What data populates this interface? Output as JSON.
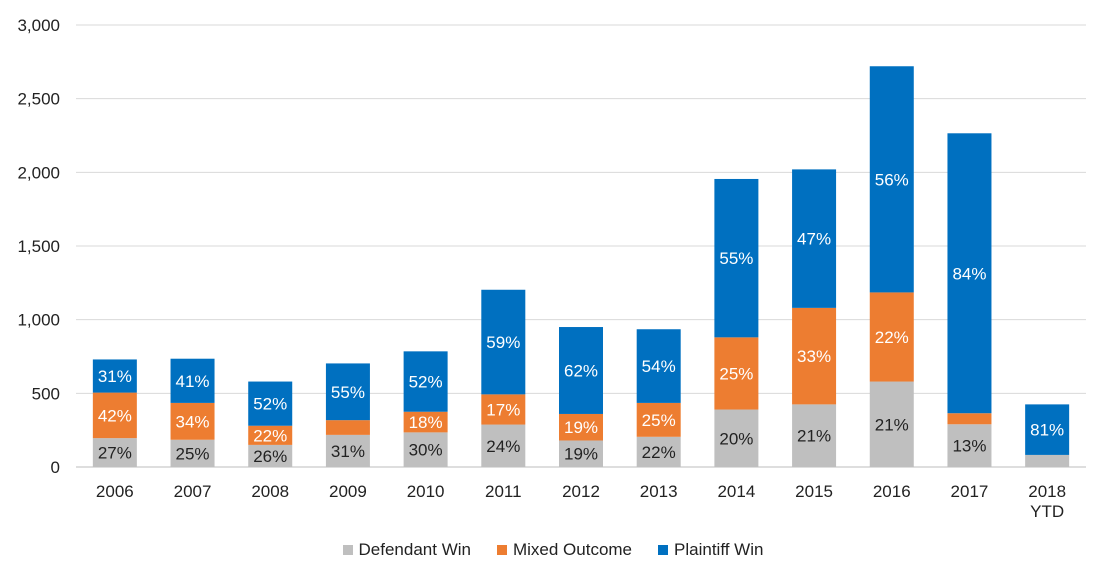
{
  "chart_data": {
    "type": "bar",
    "stacked": true,
    "categories": [
      "2006",
      "2007",
      "2008",
      "2009",
      "2010",
      "2011",
      "2012",
      "2013",
      "2014",
      "2015",
      "2016",
      "2017",
      "2018\nYTD"
    ],
    "series": [
      {
        "name": "Defendant Win",
        "color": "#bfbfbf",
        "values": [
          196,
          185,
          150,
          218,
          235,
          288,
          180,
          205,
          390,
          425,
          580,
          290,
          82
        ],
        "labels": [
          "27%",
          "25%",
          "26%",
          "31%",
          "30%",
          "24%",
          "19%",
          "22%",
          "20%",
          "21%",
          "21%",
          "13%",
          ""
        ],
        "label_color": "#222222"
      },
      {
        "name": "Mixed Outcome",
        "color": "#ed7d31",
        "values": [
          309,
          250,
          130,
          100,
          140,
          205,
          180,
          230,
          490,
          655,
          605,
          75,
          0
        ],
        "labels": [
          "42%",
          "34%",
          "22%",
          "",
          "18%",
          "17%",
          "19%",
          "25%",
          "25%",
          "33%",
          "22%",
          "",
          ""
        ],
        "label_color": "#ffffff"
      },
      {
        "name": "Plaintiff Win",
        "color": "#0070c0",
        "values": [
          225,
          300,
          300,
          385,
          410,
          710,
          590,
          500,
          1075,
          940,
          1535,
          1900,
          343
        ],
        "labels": [
          "31%",
          "41%",
          "52%",
          "55%",
          "52%",
          "59%",
          "62%",
          "54%",
          "55%",
          "47%",
          "56%",
          "84%",
          "81%"
        ],
        "label_color": "#ffffff"
      }
    ],
    "ylim": [
      0,
      3000
    ],
    "yticks": [
      0,
      500,
      1000,
      1500,
      2000,
      2500,
      3000
    ],
    "ytick_labels": [
      "0",
      "500",
      "1,000",
      "1,500",
      "2,000",
      "2,500",
      "3,000"
    ],
    "grid": true,
    "legend_position": "bottom",
    "title": "",
    "xlabel": "",
    "ylabel": ""
  }
}
